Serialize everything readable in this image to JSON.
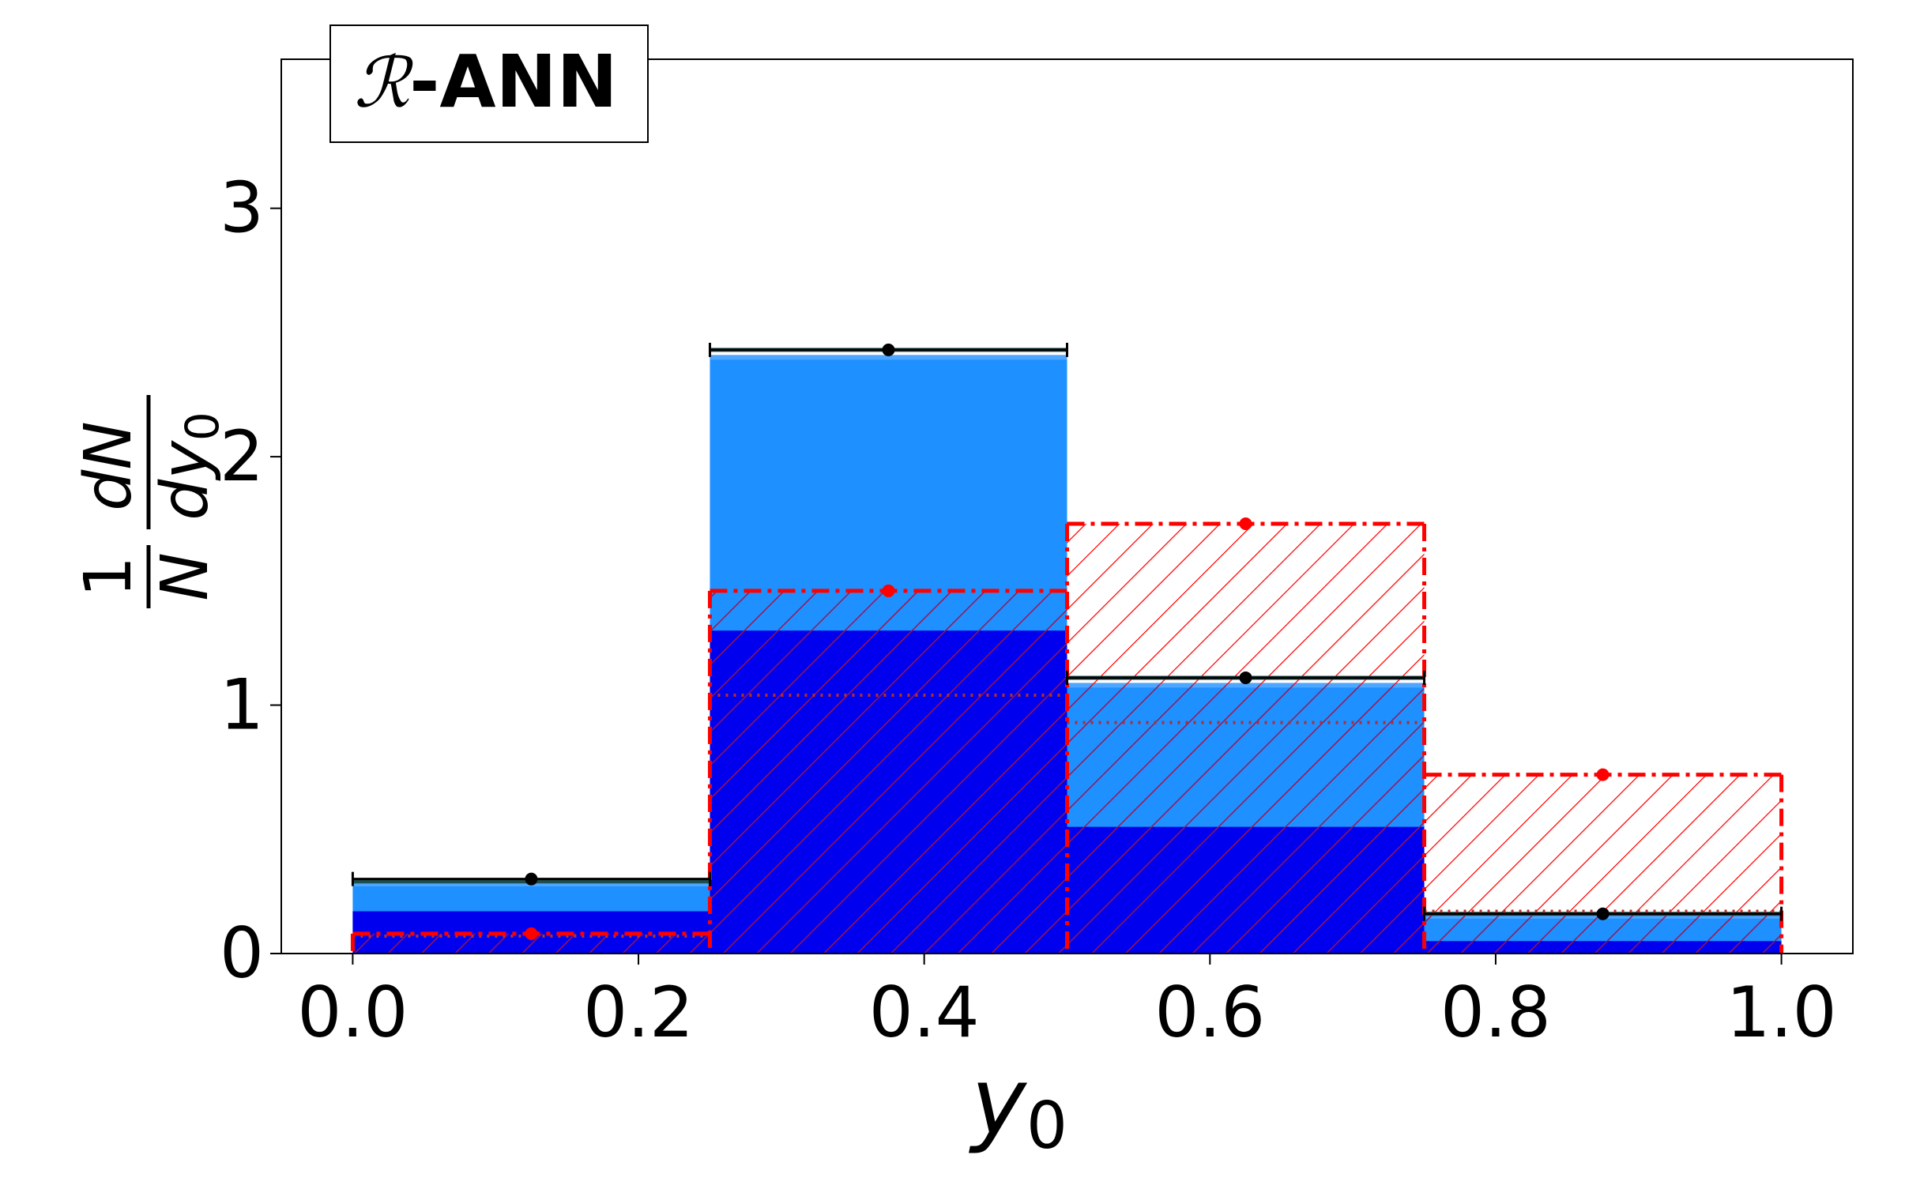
{
  "chart_data": {
    "type": "bar",
    "title": "",
    "legend_box": {
      "script": "ℛ",
      "text": "-ANN",
      "placement": "top-left"
    },
    "xlabel": {
      "base": "y",
      "sub": "0"
    },
    "ylabel": {
      "frac1_num": "1",
      "frac1_den": "N",
      "frac2_num": "dN",
      "frac2_den_base": "dy",
      "frac2_den_sub": "0"
    },
    "xlim": [
      -0.05,
      1.05
    ],
    "ylim": [
      0,
      3.6
    ],
    "xticks": [
      "0.0",
      "0.2",
      "0.4",
      "0.6",
      "0.8",
      "1.0"
    ],
    "yticks": [
      "0",
      "1",
      "2",
      "3"
    ],
    "grid": false,
    "bins": [
      {
        "x0": 0.0,
        "x1": 0.25
      },
      {
        "x0": 0.25,
        "x1": 0.5
      },
      {
        "x0": 0.5,
        "x1": 0.75
      },
      {
        "x0": 0.75,
        "x1": 1.0
      }
    ],
    "series": [
      {
        "kind": "stack-dark-blue",
        "color": "#0000ee",
        "values": [
          0.17,
          1.3,
          0.51,
          0.05
        ]
      },
      {
        "kind": "stack-light-blue",
        "color": "#1e90ff",
        "values": [
          0.28,
          2.4,
          1.08,
          0.15
        ]
      },
      {
        "kind": "stack-light-blue-edge",
        "color": "#4da6ff",
        "values": [
          0.28,
          2.4,
          1.08,
          0.15
        ]
      },
      {
        "kind": "dark-teal-line",
        "color": "#1f4e4e",
        "values": [
          0.29,
          2.43,
          1.11,
          0.16
        ]
      },
      {
        "kind": "black-points",
        "color": "#000000",
        "values": [
          0.3,
          2.43,
          1.11,
          0.16
        ],
        "errors": [
          0.01,
          0.02,
          0.01,
          0.01
        ]
      },
      {
        "kind": "red-hatched-dashdot",
        "color": "#ff0000",
        "values": [
          0.08,
          1.46,
          1.73,
          0.72
        ],
        "errors": [
          0.01,
          0.02,
          0.02,
          0.01
        ]
      },
      {
        "kind": "red-dotted",
        "color": "#b03030",
        "values": [
          0.07,
          1.04,
          0.93,
          0.17
        ]
      }
    ]
  }
}
